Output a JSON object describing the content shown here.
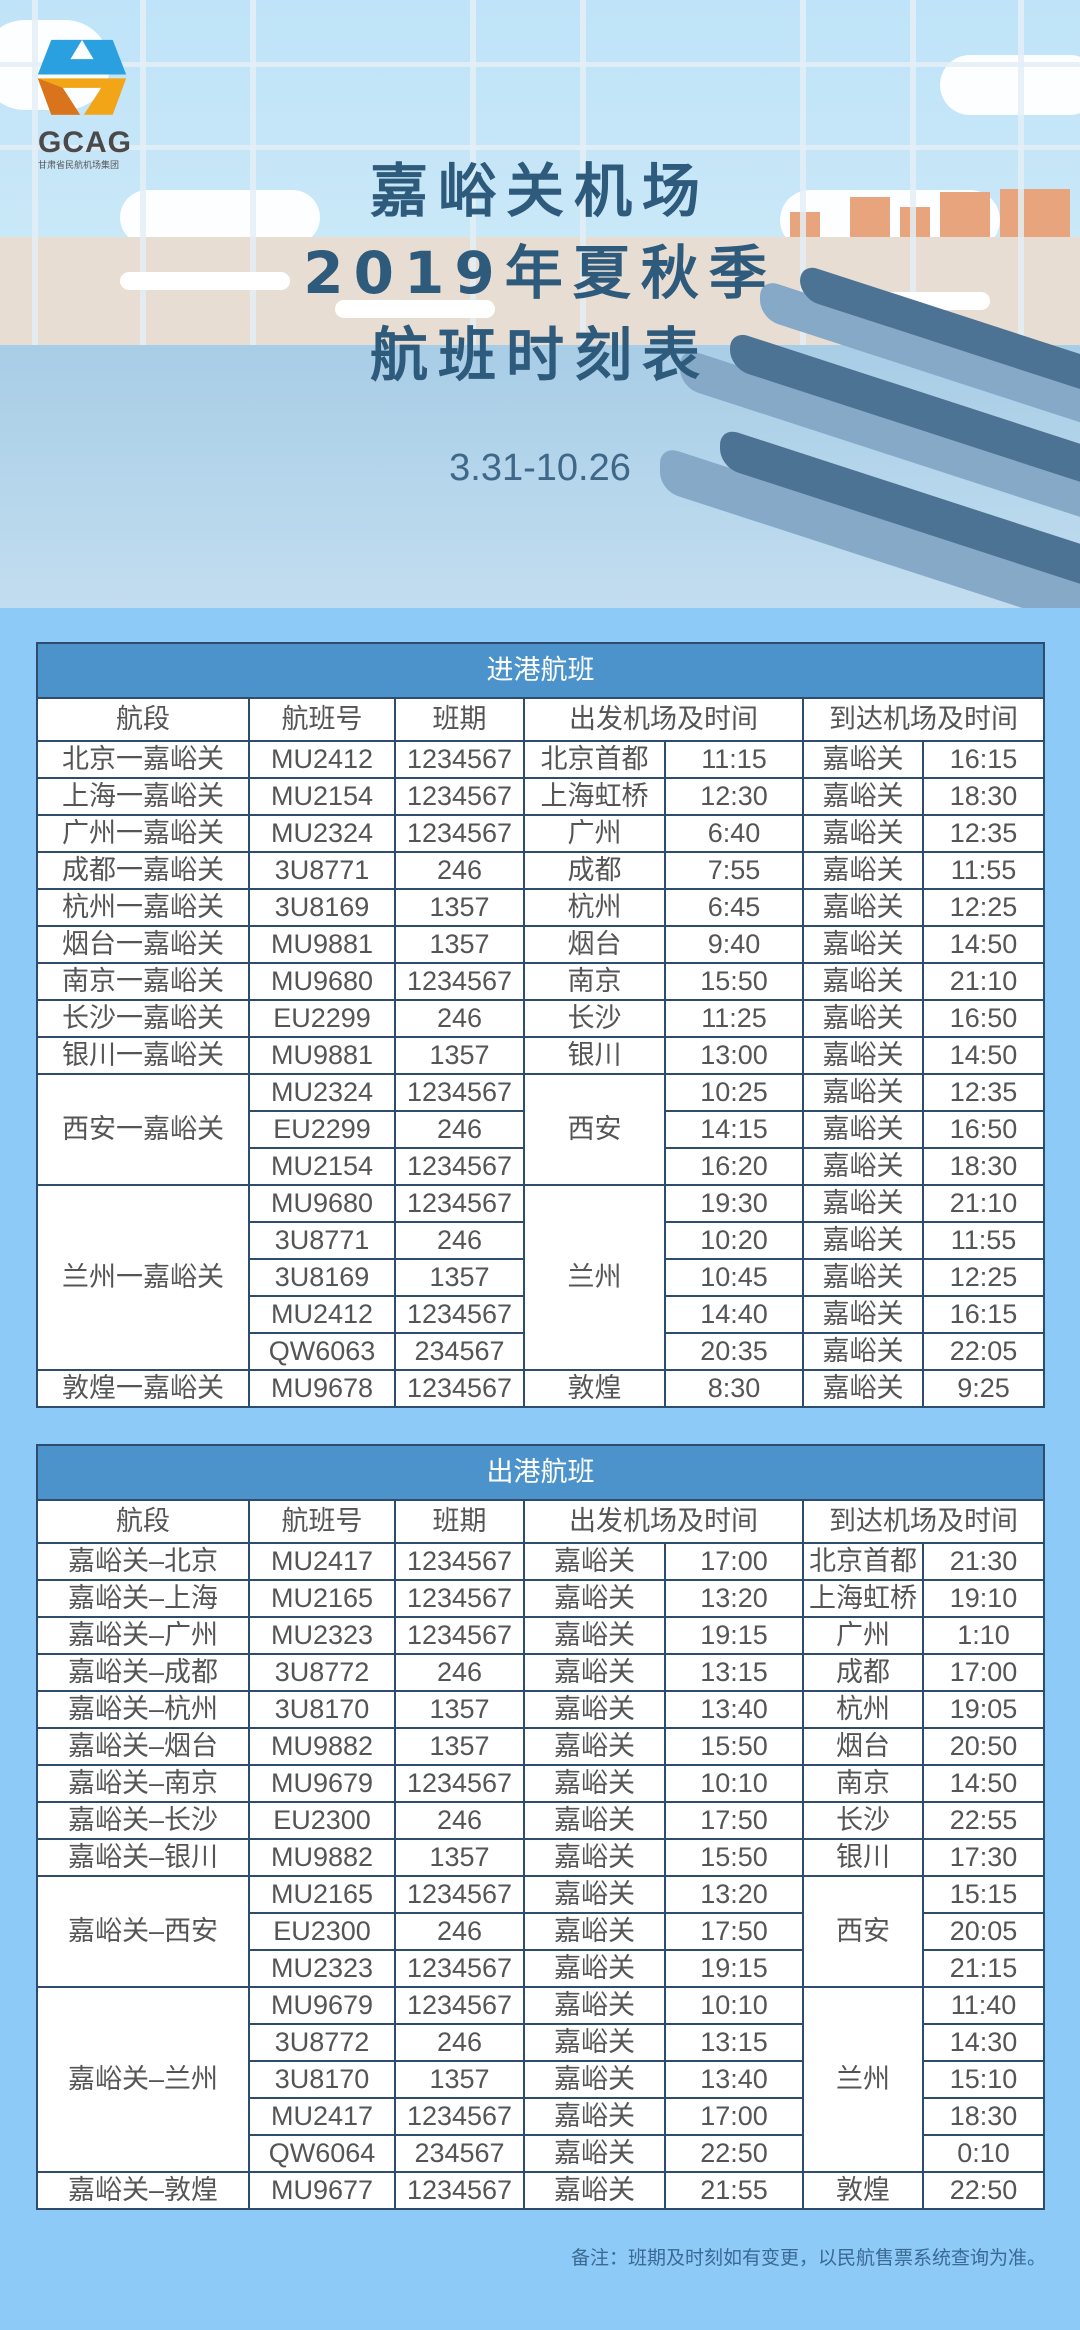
{
  "brand": {
    "logo_text": "GCAG",
    "logo_subtitle": "甘肃省民航机场集团",
    "colors": {
      "accent_blue": "#2aa0e0",
      "accent_orange": "#f2a516",
      "header_band": "#4b93ca",
      "page_bg": "#8dcaf8"
    }
  },
  "banner": {
    "title_line1": "嘉峪关机场",
    "title_line2": "2019年夏秋季",
    "title_line3": "航班时刻表",
    "date_range": "3.31-10.26"
  },
  "columns": [
    "航段",
    "航班号",
    "班期",
    "出发机场及时间",
    "到达机场及时间"
  ],
  "arrivals": {
    "title": "进港航班",
    "groups": [
      {
        "route": "北京一嘉峪关",
        "flights": [
          {
            "flight": "MU2412",
            "days": "1234567",
            "dep_airport": "北京首都",
            "dep_time": "11:15",
            "arr_airport": "嘉峪关",
            "arr_time": "16:15"
          }
        ]
      },
      {
        "route": "上海一嘉峪关",
        "flights": [
          {
            "flight": "MU2154",
            "days": "1234567",
            "dep_airport": "上海虹桥",
            "dep_time": "12:30",
            "arr_airport": "嘉峪关",
            "arr_time": "18:30"
          }
        ]
      },
      {
        "route": "广州一嘉峪关",
        "flights": [
          {
            "flight": "MU2324",
            "days": "1234567",
            "dep_airport": "广州",
            "dep_time": "6:40",
            "arr_airport": "嘉峪关",
            "arr_time": "12:35"
          }
        ]
      },
      {
        "route": "成都一嘉峪关",
        "flights": [
          {
            "flight": "3U8771",
            "days": "246",
            "dep_airport": "成都",
            "dep_time": "7:55",
            "arr_airport": "嘉峪关",
            "arr_time": "11:55"
          }
        ]
      },
      {
        "route": "杭州一嘉峪关",
        "flights": [
          {
            "flight": "3U8169",
            "days": "1357",
            "dep_airport": "杭州",
            "dep_time": "6:45",
            "arr_airport": "嘉峪关",
            "arr_time": "12:25"
          }
        ]
      },
      {
        "route": "烟台一嘉峪关",
        "flights": [
          {
            "flight": "MU9881",
            "days": "1357",
            "dep_airport": "烟台",
            "dep_time": "9:40",
            "arr_airport": "嘉峪关",
            "arr_time": "14:50"
          }
        ]
      },
      {
        "route": "南京一嘉峪关",
        "flights": [
          {
            "flight": "MU9680",
            "days": "1234567",
            "dep_airport": "南京",
            "dep_time": "15:50",
            "arr_airport": "嘉峪关",
            "arr_time": "21:10"
          }
        ]
      },
      {
        "route": "长沙一嘉峪关",
        "flights": [
          {
            "flight": "EU2299",
            "days": "246",
            "dep_airport": "长沙",
            "dep_time": "11:25",
            "arr_airport": "嘉峪关",
            "arr_time": "16:50"
          }
        ]
      },
      {
        "route": "银川一嘉峪关",
        "flights": [
          {
            "flight": "MU9881",
            "days": "1357",
            "dep_airport": "银川",
            "dep_time": "13:00",
            "arr_airport": "嘉峪关",
            "arr_time": "14:50"
          }
        ]
      },
      {
        "route": "西安一嘉峪关",
        "shared_airport": "西安",
        "flights": [
          {
            "flight": "MU2324",
            "days": "1234567",
            "dep_time": "10:25",
            "arr_airport": "嘉峪关",
            "arr_time": "12:35"
          },
          {
            "flight": "EU2299",
            "days": "246",
            "dep_time": "14:15",
            "arr_airport": "嘉峪关",
            "arr_time": "16:50"
          },
          {
            "flight": "MU2154",
            "days": "1234567",
            "dep_time": "16:20",
            "arr_airport": "嘉峪关",
            "arr_time": "18:30"
          }
        ]
      },
      {
        "route": "兰州一嘉峪关",
        "shared_airport": "兰州",
        "flights": [
          {
            "flight": "MU9680",
            "days": "1234567",
            "dep_time": "19:30",
            "arr_airport": "嘉峪关",
            "arr_time": "21:10"
          },
          {
            "flight": "3U8771",
            "days": "246",
            "dep_time": "10:20",
            "arr_airport": "嘉峪关",
            "arr_time": "11:55"
          },
          {
            "flight": "3U8169",
            "days": "1357",
            "dep_time": "10:45",
            "arr_airport": "嘉峪关",
            "arr_time": "12:25"
          },
          {
            "flight": "MU2412",
            "days": "1234567",
            "dep_time": "14:40",
            "arr_airport": "嘉峪关",
            "arr_time": "16:15"
          },
          {
            "flight": "QW6063",
            "days": "234567",
            "dep_time": "20:35",
            "arr_airport": "嘉峪关",
            "arr_time": "22:05"
          }
        ]
      },
      {
        "route": "敦煌一嘉峪关",
        "flights": [
          {
            "flight": "MU9678",
            "days": "1234567",
            "dep_airport": "敦煌",
            "dep_time": "8:30",
            "arr_airport": "嘉峪关",
            "arr_time": "9:25"
          }
        ]
      }
    ]
  },
  "departures": {
    "title": "出港航班",
    "groups": [
      {
        "route": "嘉峪关–北京",
        "flights": [
          {
            "flight": "MU2417",
            "days": "1234567",
            "dep_airport": "嘉峪关",
            "dep_time": "17:00",
            "arr_airport": "北京首都",
            "arr_time": "21:30"
          }
        ]
      },
      {
        "route": "嘉峪关–上海",
        "flights": [
          {
            "flight": "MU2165",
            "days": "1234567",
            "dep_airport": "嘉峪关",
            "dep_time": "13:20",
            "arr_airport": "上海虹桥",
            "arr_time": "19:10"
          }
        ]
      },
      {
        "route": "嘉峪关–广州",
        "flights": [
          {
            "flight": "MU2323",
            "days": "1234567",
            "dep_airport": "嘉峪关",
            "dep_time": "19:15",
            "arr_airport": "广州",
            "arr_time": "1:10"
          }
        ]
      },
      {
        "route": "嘉峪关–成都",
        "flights": [
          {
            "flight": "3U8772",
            "days": "246",
            "dep_airport": "嘉峪关",
            "dep_time": "13:15",
            "arr_airport": "成都",
            "arr_time": "17:00"
          }
        ]
      },
      {
        "route": "嘉峪关–杭州",
        "flights": [
          {
            "flight": "3U8170",
            "days": "1357",
            "dep_airport": "嘉峪关",
            "dep_time": "13:40",
            "arr_airport": "杭州",
            "arr_time": "19:05"
          }
        ]
      },
      {
        "route": "嘉峪关–烟台",
        "flights": [
          {
            "flight": "MU9882",
            "days": "1357",
            "dep_airport": "嘉峪关",
            "dep_time": "15:50",
            "arr_airport": "烟台",
            "arr_time": "20:50"
          }
        ]
      },
      {
        "route": "嘉峪关–南京",
        "flights": [
          {
            "flight": "MU9679",
            "days": "1234567",
            "dep_airport": "嘉峪关",
            "dep_time": "10:10",
            "arr_airport": "南京",
            "arr_time": "14:50"
          }
        ]
      },
      {
        "route": "嘉峪关–长沙",
        "flights": [
          {
            "flight": "EU2300",
            "days": "246",
            "dep_airport": "嘉峪关",
            "dep_time": "17:50",
            "arr_airport": "长沙",
            "arr_time": "22:55"
          }
        ]
      },
      {
        "route": "嘉峪关–银川",
        "flights": [
          {
            "flight": "MU9882",
            "days": "1357",
            "dep_airport": "嘉峪关",
            "dep_time": "15:50",
            "arr_airport": "银川",
            "arr_time": "17:30"
          }
        ]
      },
      {
        "route": "嘉峪关–西安",
        "shared_airport": "西安",
        "flights": [
          {
            "flight": "MU2165",
            "days": "1234567",
            "dep_airport": "嘉峪关",
            "dep_time": "13:20",
            "arr_time": "15:15"
          },
          {
            "flight": "EU2300",
            "days": "246",
            "dep_airport": "嘉峪关",
            "dep_time": "17:50",
            "arr_time": "20:05"
          },
          {
            "flight": "MU2323",
            "days": "1234567",
            "dep_airport": "嘉峪关",
            "dep_time": "19:15",
            "arr_time": "21:15"
          }
        ]
      },
      {
        "route": "嘉峪关–兰州",
        "shared_airport": "兰州",
        "flights": [
          {
            "flight": "MU9679",
            "days": "1234567",
            "dep_airport": "嘉峪关",
            "dep_time": "10:10",
            "arr_time": "11:40"
          },
          {
            "flight": "3U8772",
            "days": "246",
            "dep_airport": "嘉峪关",
            "dep_time": "13:15",
            "arr_time": "14:30"
          },
          {
            "flight": "3U8170",
            "days": "1357",
            "dep_airport": "嘉峪关",
            "dep_time": "13:40",
            "arr_time": "15:10"
          },
          {
            "flight": "MU2417",
            "days": "1234567",
            "dep_airport": "嘉峪关",
            "dep_time": "17:00",
            "arr_time": "18:30"
          },
          {
            "flight": "QW6064",
            "days": "234567",
            "dep_airport": "嘉峪关",
            "dep_time": "22:50",
            "arr_time": "0:10"
          }
        ]
      },
      {
        "route": "嘉峪关–敦煌",
        "flights": [
          {
            "flight": "MU9677",
            "days": "1234567",
            "dep_airport": "嘉峪关",
            "dep_time": "21:55",
            "arr_airport": "敦煌",
            "arr_time": "22:50"
          }
        ]
      }
    ]
  },
  "footnote": "备注：班期及时刻如有变更，以民航售票系统查询为准。"
}
